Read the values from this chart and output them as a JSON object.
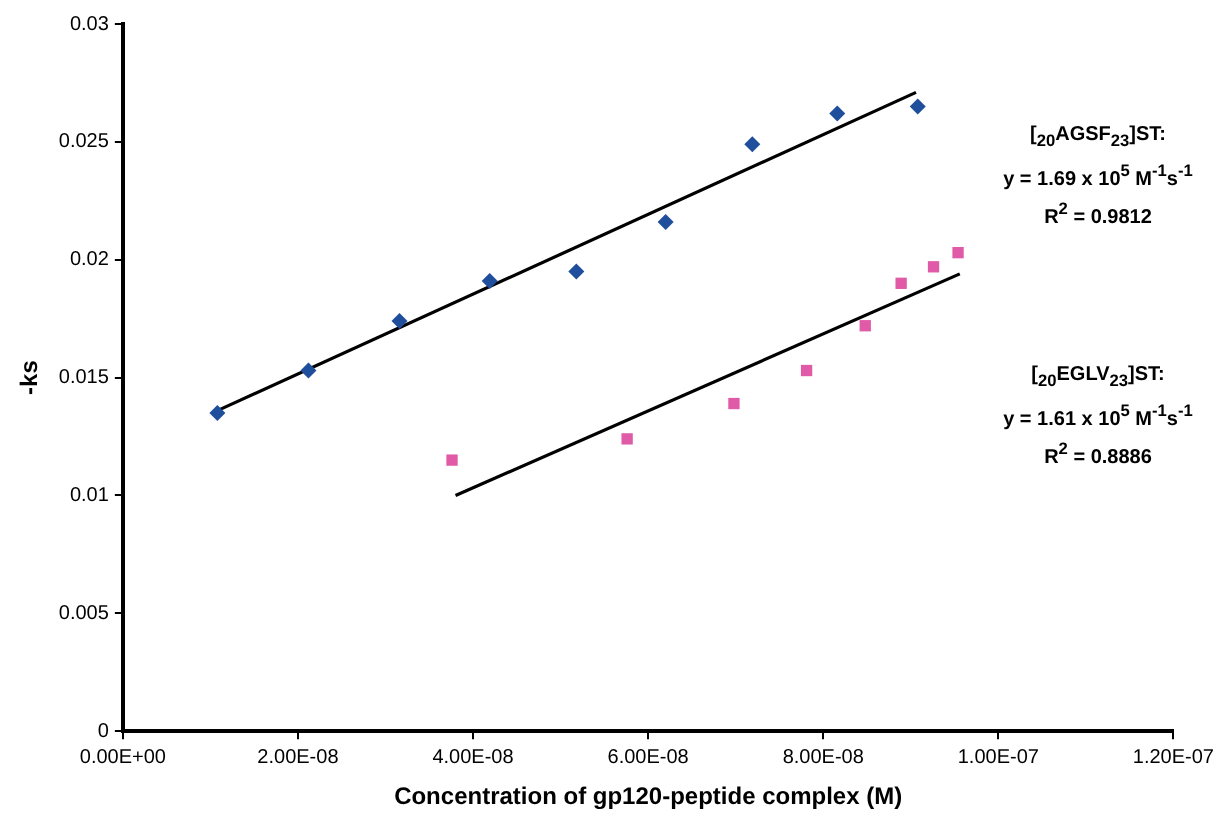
{
  "chart_data": {
    "type": "scatter",
    "xlabel": "Concentration of gp120-peptide complex (M)",
    "ylabel": "-ks",
    "xlim": [
      0,
      1.2e-07
    ],
    "xticks": [
      {
        "value": 0,
        "label": "0.00E+00"
      },
      {
        "value": 2e-08,
        "label": "2.00E-08"
      },
      {
        "value": 4e-08,
        "label": "4.00E-08"
      },
      {
        "value": 6e-08,
        "label": "6.00E-08"
      },
      {
        "value": 8e-08,
        "label": "8.00E-08"
      },
      {
        "value": 1e-07,
        "label": "1.00E-07"
      },
      {
        "value": 1.2e-07,
        "label": "1.20E-07"
      }
    ],
    "ylim": [
      0,
      0.03
    ],
    "yticks": [
      0,
      0.005,
      0.01,
      0.015,
      0.02,
      0.025,
      0.03
    ],
    "grid": false,
    "legend": false,
    "series": [
      {
        "type": "scatter",
        "color": "#1f4e9c",
        "marker": "diamond",
        "x": [
          1.08e-08,
          2.12e-08,
          3.16e-08,
          4.19e-08,
          5.18e-08,
          6.2e-08,
          7.19e-08,
          8.16e-08,
          9.08e-08
        ],
        "values": [
          0.0135,
          0.0153,
          0.0174,
          0.0191,
          0.0195,
          0.0216,
          0.0249,
          0.0262,
          0.0265
        ]
      },
      {
        "type": "scatter",
        "color": "#e05aa8",
        "marker": "square",
        "x": [
          3.76e-08,
          5.76e-08,
          6.98e-08,
          7.81e-08,
          8.48e-08,
          8.89e-08,
          9.26e-08,
          9.54e-08
        ],
        "values": [
          0.0115,
          0.0124,
          0.0139,
          0.0153,
          0.0172,
          0.019,
          0.0197,
          0.0203
        ]
      },
      {
        "type": "line",
        "color": "#000000",
        "marker": "none",
        "line_style": "solid",
        "x": [
          1.08e-08,
          9.06e-08
        ],
        "values": [
          0.0136,
          0.0271
        ]
      },
      {
        "type": "line",
        "color": "#000000",
        "marker": "none",
        "line_style": "solid",
        "x": [
          3.8e-08,
          9.56e-08
        ],
        "values": [
          0.01,
          0.0194
        ]
      }
    ],
    "annotations": [
      "[$_{20}$AGSF$_{23}$]ST:",
      "y = 1.69 x 10$^{5}$ M$^{-1}$s$^{-1}$",
      "R$^{2}$ = 0.9812",
      "[$_{20}$EGLV$_{23}$]ST:",
      "y = 1.61 x 10$^{5}$ M$^{-1}$s$^{-1}$",
      "R$^{2}$ = 0.8886"
    ]
  }
}
